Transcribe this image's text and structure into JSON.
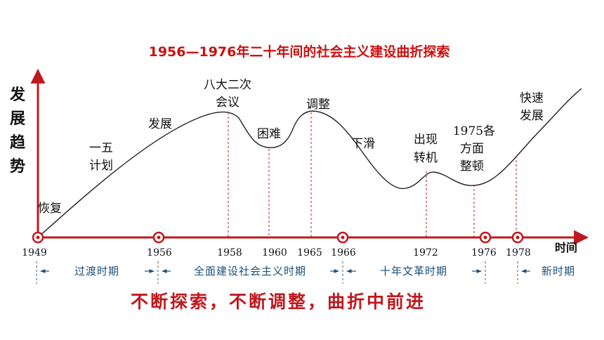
{
  "title": "1956—1976年二十年间的社会主义建设曲折探索",
  "y_axis_label": [
    "发",
    "展",
    "趋",
    "势"
  ],
  "x_axis_label": "时间",
  "years": [
    "1949",
    "1956",
    "1958",
    "1960",
    "1965",
    "1966",
    "1972",
    "1976",
    "1978"
  ],
  "stage_labels": {
    "recovery": "恢复",
    "first_plan": [
      "一五",
      "计划"
    ],
    "development": "发展",
    "eighth_congress": [
      "八大二次",
      "会议"
    ],
    "difficulty": "困难",
    "adjustment": "调整",
    "decline": "下滑",
    "turning_point": [
      "出现",
      "转机"
    ],
    "rectification_1975": [
      "1975各",
      "方面",
      "整顿"
    ],
    "rapid_development": [
      "快速",
      "发展"
    ]
  },
  "periods": [
    "过渡时期",
    "全面建设社会主义时期",
    "十年文革时期",
    "新时期"
  ],
  "slogan": "不断探索，不断调整，曲折中前进",
  "colors": {
    "accent": "#c0181e",
    "title": "#cc1111",
    "period_text": "#1a4f7a",
    "curve": "#222222"
  }
}
